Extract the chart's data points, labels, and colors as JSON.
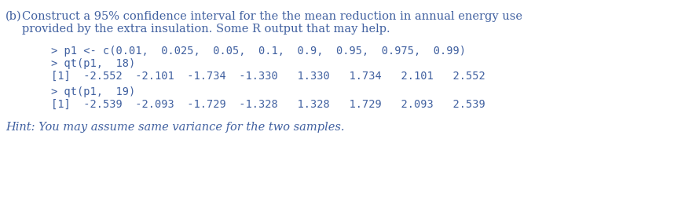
{
  "bg_color": "#ffffff",
  "blue_color": "#4060A0",
  "part_label": "(b)",
  "main_text_line1": "Construct a 95% confidence interval for the the mean reduction in annual energy use",
  "main_text_line2": "provided by the extra insulation. Some R output that may help.",
  "code_lines": [
    "> p1 <- c(0.01,  0.025,  0.05,  0.1,  0.9,  0.95,  0.975,  0.99)",
    "> qt(p1,  18)",
    "[1]  -2.552  -2.101  -1.734  -1.330   1.330   1.734   2.101   2.552",
    "> qt(p1,  19)",
    "[1]  -2.539  -2.093  -1.729  -1.328   1.328   1.729   2.093   2.539"
  ],
  "hint_text": "Hint: You may assume same variance for the two samples.",
  "font_size_main": 10.5,
  "font_size_code": 9.8,
  "font_size_hint": 10.5
}
